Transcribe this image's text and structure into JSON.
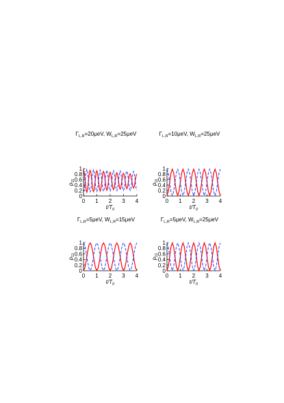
{
  "chart_data": [
    {
      "type": "line",
      "title": [
        "Γ",
        "L,R",
        "=20μeV, W",
        "L,R",
        "=25μeV"
      ],
      "xlabel": [
        "t/T",
        "0"
      ],
      "ylabel": [
        "ρ",
        "11"
      ],
      "xlim": [
        0,
        4
      ],
      "ylim": [
        0,
        1
      ],
      "xticks": [
        0,
        1,
        2,
        3,
        4
      ],
      "yticks": [
        0,
        0.2,
        0.4,
        0.6,
        0.8,
        1
      ],
      "x": [
        0,
        0.05,
        0.1,
        0.15,
        0.2,
        0.25,
        0.3,
        0.35,
        0.4,
        0.45,
        0.5,
        0.55,
        0.6,
        0.65,
        0.7,
        0.75,
        0.8,
        0.85,
        0.9,
        0.95,
        1,
        1.05,
        1.1,
        1.15,
        1.2,
        1.25,
        1.3,
        1.35,
        1.4,
        1.45,
        1.5,
        1.55,
        1.6,
        1.65,
        1.7,
        1.75,
        1.8,
        1.85,
        1.9,
        1.95,
        2,
        2.05,
        2.1,
        2.15,
        2.2,
        2.25,
        2.3,
        2.35,
        2.4,
        2.45,
        2.5,
        2.55,
        2.6,
        2.65,
        2.7,
        2.75,
        2.8,
        2.85,
        2.9,
        2.95,
        3,
        3.05,
        3.1,
        3.15,
        3.2,
        3.25,
        3.3,
        3.35,
        3.4,
        3.45,
        3.5,
        3.55,
        3.6,
        3.65,
        3.7,
        3.75,
        3.8,
        3.85,
        3.9,
        3.95,
        4
      ],
      "series": [
        {
          "color": "#ff0000",
          "dashed": false,
          "values": [
            0.96,
            0.88,
            0.68,
            0.42,
            0.22,
            0.14,
            0.22,
            0.42,
            0.68,
            0.88,
            0.94,
            0.87,
            0.67,
            0.43,
            0.23,
            0.16,
            0.23,
            0.43,
            0.67,
            0.87,
            0.92,
            0.85,
            0.66,
            0.44,
            0.25,
            0.18,
            0.25,
            0.44,
            0.66,
            0.85,
            0.9,
            0.83,
            0.66,
            0.44,
            0.27,
            0.21,
            0.27,
            0.44,
            0.66,
            0.83,
            0.87,
            0.81,
            0.65,
            0.45,
            0.29,
            0.23,
            0.29,
            0.45,
            0.65,
            0.81,
            0.85,
            0.8,
            0.64,
            0.46,
            0.3,
            0.25,
            0.3,
            0.46,
            0.64,
            0.8,
            0.83,
            0.78,
            0.64,
            0.46,
            0.32,
            0.27,
            0.32,
            0.46,
            0.64,
            0.78,
            0.81,
            0.76,
            0.63,
            0.47,
            0.34,
            0.29,
            0.34,
            0.47,
            0.63,
            0.76,
            0.8
          ]
        },
        {
          "color": "#2040ff",
          "dashed": true,
          "values": [
            0.14,
            0.21,
            0.42,
            0.68,
            0.89,
            0.97,
            0.89,
            0.68,
            0.42,
            0.21,
            0.15,
            0.22,
            0.42,
            0.68,
            0.88,
            0.96,
            0.88,
            0.68,
            0.42,
            0.22,
            0.16,
            0.23,
            0.43,
            0.67,
            0.87,
            0.95,
            0.87,
            0.67,
            0.43,
            0.23,
            0.17,
            0.24,
            0.43,
            0.67,
            0.86,
            0.94,
            0.86,
            0.67,
            0.43,
            0.24,
            0.18,
            0.25,
            0.43,
            0.67,
            0.85,
            0.93,
            0.85,
            0.67,
            0.43,
            0.25,
            0.19,
            0.25,
            0.44,
            0.66,
            0.85,
            0.92,
            0.85,
            0.66,
            0.44,
            0.25,
            0.2,
            0.26,
            0.44,
            0.66,
            0.84,
            0.91,
            0.84,
            0.66,
            0.44,
            0.26,
            0.2,
            0.27,
            0.44,
            0.66,
            0.83,
            0.9,
            0.83,
            0.66,
            0.44,
            0.27,
            0.21
          ]
        }
      ]
    },
    {
      "type": "line",
      "title": [
        "Γ",
        "L,R",
        "=10μeV, W",
        "L,R",
        "=25μeV"
      ],
      "xlabel": [
        "t/T",
        "0"
      ],
      "ylabel": [
        "ρ",
        "11"
      ],
      "xlim": [
        0,
        4
      ],
      "ylim": [
        0,
        1
      ],
      "xticks": [
        0,
        1,
        2,
        3,
        4
      ],
      "yticks": [
        0,
        0.2,
        0.4,
        0.6,
        0.8,
        1
      ],
      "x": [
        0,
        0.1,
        0.2,
        0.3,
        0.4,
        0.5,
        0.6,
        0.7,
        0.8,
        0.9,
        1,
        1.1,
        1.2,
        1.3,
        1.4,
        1.5,
        1.6,
        1.7,
        1.8,
        1.9,
        2,
        2.1,
        2.2,
        2.3,
        2.4,
        2.5,
        2.6,
        2.7,
        2.8,
        2.9,
        3,
        3.1,
        3.2,
        3.3,
        3.4,
        3.5,
        3.6,
        3.7,
        3.8,
        3.9,
        4
      ],
      "series": [
        {
          "color": "#ff0000",
          "dashed": false,
          "values": [
            0.02,
            0.16,
            0.5,
            0.84,
            0.98,
            0.84,
            0.5,
            0.16,
            0.02,
            0.16,
            0.5,
            0.84,
            0.98,
            0.84,
            0.5,
            0.16,
            0.02,
            0.16,
            0.5,
            0.84,
            0.98,
            0.84,
            0.5,
            0.16,
            0.02,
            0.16,
            0.5,
            0.84,
            0.98,
            0.84,
            0.5,
            0.16,
            0.02,
            0.16,
            0.5,
            0.84,
            0.98,
            0.84,
            0.5,
            0.16,
            0.02
          ]
        },
        {
          "color": "#2040ff",
          "dashed": true,
          "values": [
            0.98,
            0.84,
            0.5,
            0.16,
            0.02,
            0.16,
            0.5,
            0.84,
            0.98,
            0.84,
            0.5,
            0.16,
            0.02,
            0.16,
            0.5,
            0.84,
            0.98,
            0.84,
            0.5,
            0.16,
            0.02,
            0.16,
            0.5,
            0.84,
            0.98,
            0.84,
            0.5,
            0.16,
            0.02,
            0.16,
            0.5,
            0.84,
            0.98,
            0.84,
            0.5,
            0.16,
            0.02,
            0.16,
            0.5,
            0.84,
            0.98
          ]
        }
      ]
    },
    {
      "type": "line",
      "title": [
        "Γ",
        "L,R",
        "=5μeV, W",
        "L,R",
        "=15μeV"
      ],
      "xlabel": [
        "t/T",
        "0"
      ],
      "ylabel": [
        "ρ",
        "11"
      ],
      "xlim": [
        0,
        4
      ],
      "ylim": [
        0,
        1
      ],
      "xticks": [
        0,
        1,
        2,
        3,
        4
      ],
      "yticks": [
        0,
        0.2,
        0.4,
        0.6,
        0.8,
        1
      ],
      "x": [
        0,
        0.1,
        0.2,
        0.3,
        0.4,
        0.5,
        0.6,
        0.7,
        0.8,
        0.9,
        1,
        1.1,
        1.2,
        1.3,
        1.4,
        1.5,
        1.6,
        1.7,
        1.8,
        1.9,
        2,
        2.1,
        2.2,
        2.3,
        2.4,
        2.5,
        2.6,
        2.7,
        2.8,
        2.9,
        3,
        3.1,
        3.2,
        3.3,
        3.4,
        3.5,
        3.6,
        3.7,
        3.8,
        3.9,
        4
      ],
      "series": [
        {
          "color": "#ff0000",
          "dashed": false,
          "values": [
            0.01,
            0.1,
            0.35,
            0.65,
            0.9,
            0.99,
            0.9,
            0.65,
            0.35,
            0.1,
            0.01,
            0.1,
            0.35,
            0.65,
            0.9,
            0.99,
            0.9,
            0.65,
            0.35,
            0.1,
            0.01,
            0.1,
            0.35,
            0.65,
            0.9,
            0.99,
            0.9,
            0.65,
            0.35,
            0.1,
            0.01,
            0.1,
            0.35,
            0.65,
            0.9,
            0.99,
            0.9,
            0.65,
            0.35,
            0.1,
            0.01
          ]
        },
        {
          "color": "#2040ff",
          "dashed": true,
          "values": [
            0.99,
            0.9,
            0.65,
            0.35,
            0.1,
            0.01,
            0.1,
            0.35,
            0.65,
            0.9,
            0.99,
            0.9,
            0.65,
            0.35,
            0.1,
            0.01,
            0.1,
            0.35,
            0.65,
            0.9,
            0.99,
            0.9,
            0.65,
            0.35,
            0.1,
            0.01,
            0.1,
            0.35,
            0.65,
            0.9,
            0.99,
            0.9,
            0.65,
            0.35,
            0.1,
            0.01,
            0.1,
            0.35,
            0.65,
            0.9,
            0.99
          ]
        }
      ]
    },
    {
      "type": "line",
      "title": [
        "Γ",
        "L,R",
        "=5μeV, W",
        "L,R",
        "=25μeV"
      ],
      "xlabel": [
        "t/T",
        "0"
      ],
      "ylabel": [
        "ρ",
        "11"
      ],
      "xlim": [
        0,
        4
      ],
      "ylim": [
        0,
        1
      ],
      "xticks": [
        0,
        1,
        2,
        3,
        4
      ],
      "yticks": [
        0,
        0.2,
        0.4,
        0.6,
        0.8,
        1
      ],
      "x": [
        0,
        0.1,
        0.2,
        0.3,
        0.4,
        0.5,
        0.6,
        0.7,
        0.8,
        0.9,
        1,
        1.1,
        1.2,
        1.3,
        1.4,
        1.5,
        1.6,
        1.7,
        1.8,
        1.9,
        2,
        2.1,
        2.2,
        2.3,
        2.4,
        2.5,
        2.6,
        2.7,
        2.8,
        2.9,
        3,
        3.1,
        3.2,
        3.3,
        3.4,
        3.5,
        3.6,
        3.7,
        3.8,
        3.9,
        4
      ],
      "series": [
        {
          "color": "#ff0000",
          "dashed": false,
          "values": [
            0.01,
            0.15,
            0.5,
            0.85,
            0.99,
            0.85,
            0.5,
            0.15,
            0.01,
            0.15,
            0.5,
            0.85,
            0.99,
            0.85,
            0.5,
            0.15,
            0.01,
            0.15,
            0.5,
            0.85,
            0.99,
            0.85,
            0.5,
            0.15,
            0.01,
            0.15,
            0.5,
            0.85,
            0.99,
            0.85,
            0.5,
            0.15,
            0.01,
            0.15,
            0.5,
            0.85,
            0.99,
            0.85,
            0.5,
            0.15,
            0.01
          ]
        },
        {
          "color": "#2040ff",
          "dashed": true,
          "values": [
            0.99,
            0.85,
            0.5,
            0.15,
            0.01,
            0.15,
            0.5,
            0.85,
            0.99,
            0.85,
            0.5,
            0.15,
            0.01,
            0.15,
            0.5,
            0.85,
            0.99,
            0.85,
            0.5,
            0.15,
            0.01,
            0.15,
            0.5,
            0.85,
            0.99,
            0.85,
            0.5,
            0.15,
            0.01,
            0.15,
            0.5,
            0.85,
            0.99,
            0.85,
            0.5,
            0.15,
            0.01,
            0.15,
            0.5,
            0.85,
            0.99
          ]
        }
      ]
    }
  ]
}
